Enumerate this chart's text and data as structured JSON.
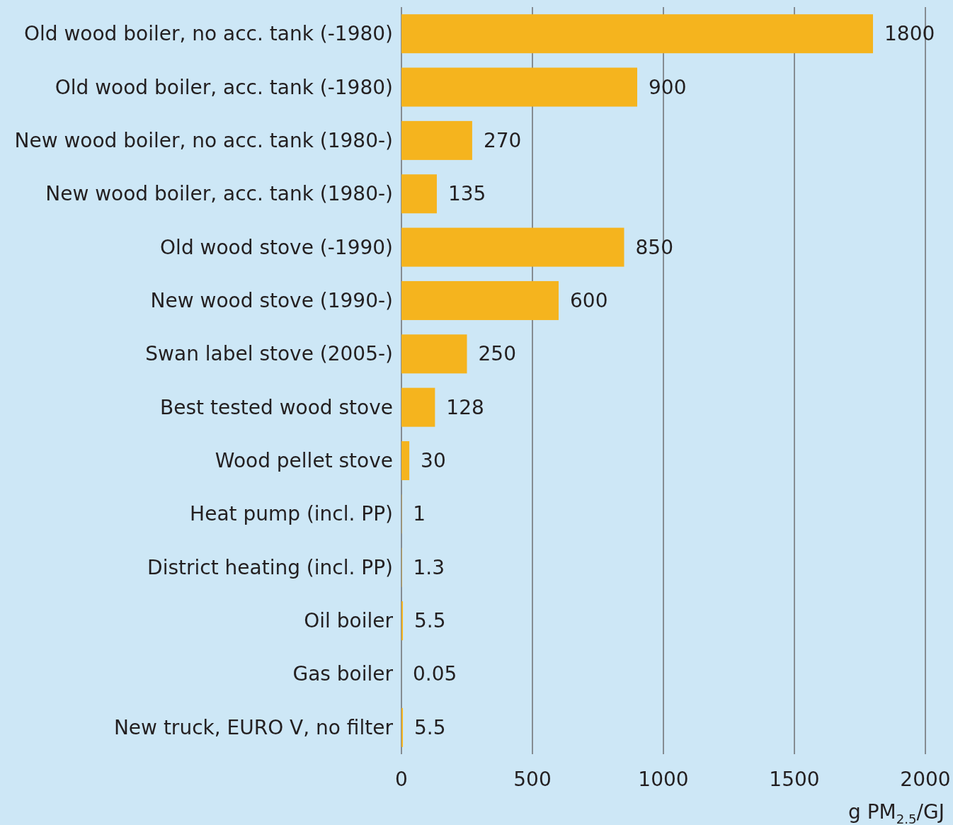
{
  "chart_data": {
    "type": "bar",
    "orientation": "horizontal",
    "categories": [
      "Old wood boiler, no acc. tank (-1980)",
      "Old wood boiler, acc. tank (-1980)",
      "New wood boiler, no acc. tank (1980-)",
      "New wood boiler, acc. tank (1980-)",
      "Old wood stove (-1990)",
      "New wood stove (1990-)",
      "Swan label stove (2005-)",
      "Best tested wood stove",
      "Wood pellet stove",
      "Heat pump (incl. PP)",
      "District heating (incl. PP)",
      "Oil boiler",
      "Gas boiler",
      "New truck, EURO V, no filter"
    ],
    "values": [
      1800,
      900,
      270,
      135,
      850,
      600,
      250,
      128,
      30,
      1,
      1.3,
      5.5,
      0.05,
      5.5
    ],
    "color": "#f5b41e",
    "xlim": [
      0,
      2000
    ],
    "xticks": [
      0,
      500,
      1000,
      1500,
      2000
    ],
    "xlabel": "g PM$_{2.5}$/GJ",
    "grid": "x",
    "data_labels": true
  }
}
